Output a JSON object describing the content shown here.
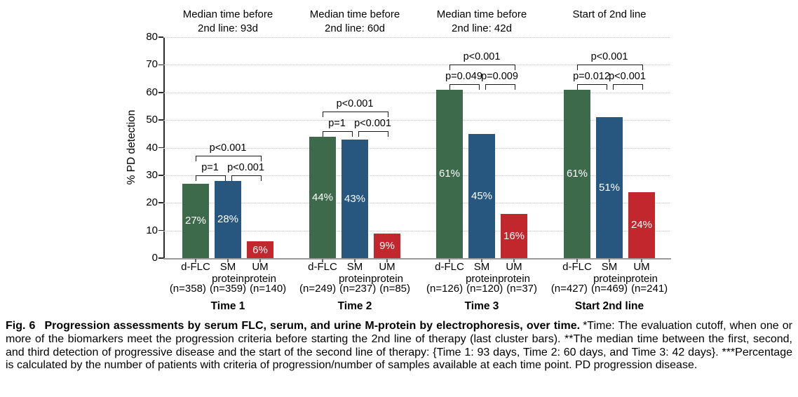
{
  "colors": {
    "green": "#3d6a4b",
    "blue": "#27567e",
    "red": "#c1272d",
    "grid": "#c2c2c2",
    "axis": "#2b2b2b",
    "baseline": "#9a9a9a",
    "bar_text": "#ffffff"
  },
  "chart_data": {
    "type": "bar",
    "title": "",
    "xlabel": "",
    "ylabel": "% PD detection",
    "ylim": [
      0,
      80
    ],
    "yticks": [
      0,
      10,
      20,
      30,
      40,
      50,
      60,
      70,
      80
    ],
    "grid": "horizontal-dotted",
    "legend_position": "none",
    "series_colors": {
      "d-FLC": "#3d6a4b",
      "SM protein": "#27567e",
      "UM protein": "#c1272d"
    },
    "groups": [
      {
        "header_lines": [
          "Median time before",
          "2nd line: 93d"
        ],
        "label": "Time 1",
        "p_left": "p=1",
        "p_right": "p<0.001",
        "p_outer": "p<0.001",
        "bars": [
          {
            "series": "d-FLC",
            "name_lines": [
              "d-FLC"
            ],
            "n": "(n=358)",
            "value": 27,
            "value_label": "27%",
            "color_key": "green"
          },
          {
            "series": "SM protein",
            "name_lines": [
              "SM",
              "protein"
            ],
            "n": "(n=359)",
            "value": 28,
            "value_label": "28%",
            "color_key": "blue"
          },
          {
            "series": "UM protein",
            "name_lines": [
              "UM",
              "protein"
            ],
            "n": "(n=140)",
            "value": 6,
            "value_label": "6%",
            "color_key": "red"
          }
        ]
      },
      {
        "header_lines": [
          "Median time before",
          "2nd line: 60d"
        ],
        "label": "Time 2",
        "p_left": "p=1",
        "p_right": "p<0.001",
        "p_outer": "p<0.001",
        "bars": [
          {
            "series": "d-FLC",
            "name_lines": [
              "d-FLC"
            ],
            "n": "(n=249)",
            "value": 44,
            "value_label": "44%",
            "color_key": "green"
          },
          {
            "series": "SM protein",
            "name_lines": [
              "SM",
              "protein"
            ],
            "n": "(n=237)",
            "value": 43,
            "value_label": "43%",
            "color_key": "blue"
          },
          {
            "series": "UM protein",
            "name_lines": [
              "UM",
              "protein"
            ],
            "n": "(n=85)",
            "value": 9,
            "value_label": "9%",
            "color_key": "red"
          }
        ]
      },
      {
        "header_lines": [
          "Median time before",
          "2nd line: 42d"
        ],
        "label": "Time 3",
        "p_left": "p=0.049",
        "p_right": "p=0.009",
        "p_outer": "p<0.001",
        "bars": [
          {
            "series": "d-FLC",
            "name_lines": [
              "d-FLC"
            ],
            "n": "(n=126)",
            "value": 61,
            "value_label": "61%",
            "color_key": "green"
          },
          {
            "series": "SM protein",
            "name_lines": [
              "SM",
              "protein"
            ],
            "n": "(n=120)",
            "value": 45,
            "value_label": "45%",
            "color_key": "blue"
          },
          {
            "series": "UM protein",
            "name_lines": [
              "UM",
              "protein"
            ],
            "n": "(n=37)",
            "value": 16,
            "value_label": "16%",
            "color_key": "red"
          }
        ]
      },
      {
        "header_lines": [
          "Start of 2nd line"
        ],
        "label": "Start 2nd line",
        "p_left": "p=0.012",
        "p_right": "p<0.001",
        "p_outer": "p<0.001",
        "bars": [
          {
            "series": "d-FLC",
            "name_lines": [
              "d-FLC"
            ],
            "n": "(n=427)",
            "value": 61,
            "value_label": "61%",
            "color_key": "green"
          },
          {
            "series": "SM protein",
            "name_lines": [
              "SM",
              "protein"
            ],
            "n": "(n=469)",
            "value": 51,
            "value_label": "51%",
            "color_key": "blue"
          },
          {
            "series": "UM protein",
            "name_lines": [
              "UM",
              "protein"
            ],
            "n": "(n=241)",
            "value": 24,
            "value_label": "24%",
            "color_key": "red"
          }
        ]
      }
    ]
  },
  "caption": {
    "fig_label": "Fig. 6",
    "title": "Progression assessments by serum FLC, serum, and urine M-protein by electrophoresis, over time.",
    "body": "*Time: The evaluation cutoff, when one or more of the biomarkers meet the progression criteria before starting the 2nd line of therapy (last cluster bars). **The median time between the first, second, and third detection of progressive disease and the start of the second line of therapy: {Time 1: 93 days, Time 2: 60 days, and Time 3: 42 days}. ***Percentage is calculated by the number of patients with criteria of progression/number of samples available at each time point. PD progression disease."
  }
}
